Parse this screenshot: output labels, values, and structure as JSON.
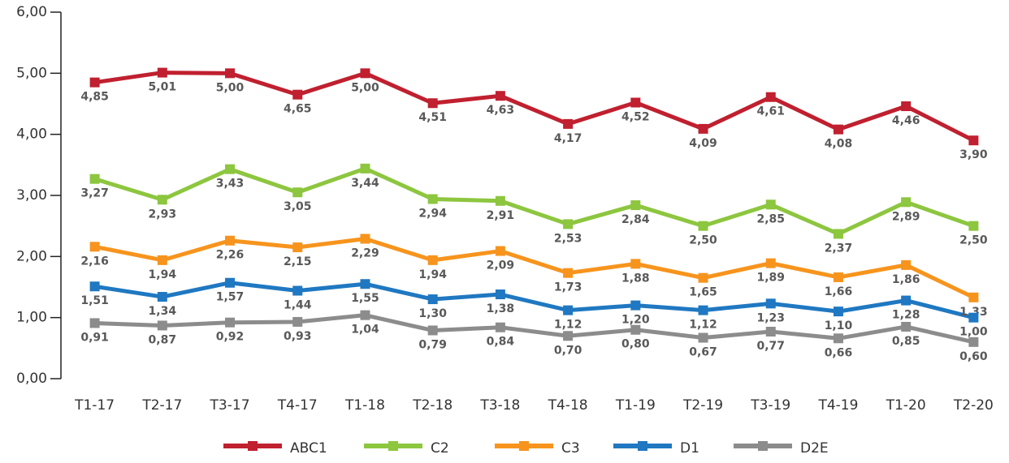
{
  "chart_data": {
    "type": "line",
    "categories": [
      "T1-17",
      "T2-17",
      "T3-17",
      "T4-17",
      "T1-18",
      "T2-18",
      "T3-18",
      "T4-18",
      "T1-19",
      "T2-19",
      "T3-19",
      "T4-19",
      "T1-20",
      "T2-20"
    ],
    "ylim": [
      0,
      6
    ],
    "yticks": [
      {
        "value": 0,
        "label": "0,00"
      },
      {
        "value": 1,
        "label": "1,00"
      },
      {
        "value": 2,
        "label": "2,00"
      },
      {
        "value": 3,
        "label": "3,00"
      },
      {
        "value": 4,
        "label": "4,00"
      },
      {
        "value": 5,
        "label": "5,00"
      },
      {
        "value": 6,
        "label": "6,00"
      }
    ],
    "series": [
      {
        "name": "ABC1",
        "color": "#c0202f",
        "values": [
          4.85,
          5.01,
          5.0,
          4.65,
          5.0,
          4.51,
          4.63,
          4.17,
          4.52,
          4.09,
          4.61,
          4.08,
          4.46,
          3.9
        ],
        "value_labels": [
          "4,85",
          "5,01",
          "5,00",
          "4,65",
          "5,00",
          "4,51",
          "4,63",
          "4,17",
          "4,52",
          "4,09",
          "4,61",
          "4,08",
          "4,46",
          "3,90"
        ]
      },
      {
        "name": "C2",
        "color": "#8dc63f",
        "values": [
          3.27,
          2.93,
          3.43,
          3.05,
          3.44,
          2.94,
          2.91,
          2.53,
          2.84,
          2.5,
          2.85,
          2.37,
          2.89,
          2.5
        ],
        "value_labels": [
          "3,27",
          "2,93",
          "3,43",
          "3,05",
          "3,44",
          "2,94",
          "2,91",
          "2,53",
          "2,84",
          "2,50",
          "2,85",
          "2,37",
          "2,89",
          "2,50"
        ]
      },
      {
        "name": "C3",
        "color": "#f7941d",
        "values": [
          2.16,
          1.94,
          2.26,
          2.15,
          2.29,
          1.94,
          2.09,
          1.73,
          1.88,
          1.65,
          1.89,
          1.66,
          1.86,
          1.33
        ],
        "value_labels": [
          "2,16",
          "1,94",
          "2,26",
          "2,15",
          "2,29",
          "1,94",
          "2,09",
          "1,73",
          "1,88",
          "1,65",
          "1,89",
          "1,66",
          "1,86",
          "1,33"
        ]
      },
      {
        "name": "D1",
        "color": "#1f78c1",
        "values": [
          1.51,
          1.34,
          1.57,
          1.44,
          1.55,
          1.3,
          1.38,
          1.12,
          1.2,
          1.12,
          1.23,
          1.1,
          1.28,
          1.0
        ],
        "value_labels": [
          "1,51",
          "1,34",
          "1,57",
          "1,44",
          "1,55",
          "1,30",
          "1,38",
          "1,12",
          "1,20",
          "1,12",
          "1,23",
          "1,10",
          "1,28",
          "1,00"
        ]
      },
      {
        "name": "D2E",
        "color": "#8c8c8c",
        "values": [
          0.91,
          0.87,
          0.92,
          0.93,
          1.04,
          0.79,
          0.84,
          0.7,
          0.8,
          0.67,
          0.77,
          0.66,
          0.85,
          0.6
        ],
        "value_labels": [
          "0,91",
          "0,87",
          "0,92",
          "0,93",
          "1,04",
          "0,79",
          "0,84",
          "0,70",
          "0,80",
          "0,67",
          "0,77",
          "0,66",
          "0,85",
          "0,60"
        ]
      }
    ]
  }
}
